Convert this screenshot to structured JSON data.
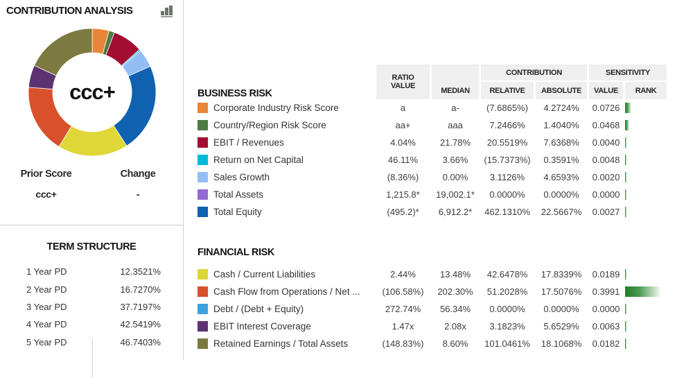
{
  "panel": {
    "title": "CONTRIBUTION ANALYSIS",
    "donut": {
      "center_label": "ccc+",
      "segments": [
        {
          "name": "Corporate Industry Risk Score",
          "color": "#E8873B",
          "value": 4.2724
        },
        {
          "name": "Country/Region Risk Score",
          "color": "#4F7B42",
          "value": 1.404
        },
        {
          "name": "EBIT / Revenues",
          "color": "#A30D32",
          "value": 7.6368
        },
        {
          "name": "Return on Net Capital",
          "color": "#00B9D8",
          "value": 0.3591
        },
        {
          "name": "Sales Growth",
          "color": "#92BEF5",
          "value": 4.6593
        },
        {
          "name": "Total Assets",
          "color": "#9569D3",
          "value": 0.0
        },
        {
          "name": "Total Equity",
          "color": "#1061B0",
          "value": 22.5667
        },
        {
          "name": "Cash / Current Liabilities",
          "color": "#DFD637",
          "value": 17.8339
        },
        {
          "name": "Cash Flow from Operations / Net ...",
          "color": "#D8512B",
          "value": 17.5076
        },
        {
          "name": "Debt / (Debt + Equity)",
          "color": "#3FA0E1",
          "value": 0.0
        },
        {
          "name": "EBIT Interest Coverage",
          "color": "#5D3272",
          "value": 5.6529
        },
        {
          "name": "Retained Earnings / Total Assets",
          "color": "#7C7A40",
          "value": 18.1068
        }
      ]
    },
    "prior_score": {
      "label": "Prior Score",
      "value": "ccc+"
    },
    "change": {
      "label": "Change",
      "value": "-"
    },
    "term_structure": {
      "title": "TERM STRUCTURE",
      "rows": [
        {
          "label": "1 Year PD",
          "value": "12.3521%"
        },
        {
          "label": "2 Year PD",
          "value": "16.7270%"
        },
        {
          "label": "3 Year PD",
          "value": "37.7197%"
        },
        {
          "label": "4 Year PD",
          "value": "42.5419%"
        },
        {
          "label": "5 Year PD",
          "value": "46.7403%"
        }
      ]
    }
  },
  "table": {
    "headers": {
      "ratio_value": [
        "RATIO",
        "VALUE"
      ],
      "median": "MEDIAN",
      "contribution": "CONTRIBUTION",
      "relative": "RELATIVE",
      "absolute": "ABSOLUTE",
      "sensitivity": "SENSITIVITY",
      "value": "VALUE",
      "rank": "RANK"
    },
    "business_risk": {
      "title": "BUSINESS RISK",
      "rows": [
        {
          "label": "Corporate Industry Risk Score",
          "color": "#E8873B",
          "ratio_value": "a",
          "median": "a-",
          "relative": "(7.6865%)",
          "absolute": "4.2724%",
          "sens_value": "0.0726"
        },
        {
          "label": "Country/Region Risk Score",
          "color": "#4F7B42",
          "ratio_value": "aa+",
          "median": "aaa",
          "relative": "7.2466%",
          "absolute": "1.4040%",
          "sens_value": "0.0468"
        },
        {
          "label": "EBIT / Revenues",
          "color": "#A30D32",
          "ratio_value": "4.04%",
          "median": "21.78%",
          "relative": "20.5519%",
          "absolute": "7.6368%",
          "sens_value": "0.0040"
        },
        {
          "label": "Return on Net Capital",
          "color": "#00B9D8",
          "ratio_value": "46.11%",
          "median": "3.66%",
          "relative": "(15.7373%)",
          "absolute": "0.3591%",
          "sens_value": "0.0048"
        },
        {
          "label": "Sales Growth",
          "color": "#92BEF5",
          "ratio_value": "(8.36%)",
          "median": "0.00%",
          "relative": "3.1126%",
          "absolute": "4.6593%",
          "sens_value": "0.0020"
        },
        {
          "label": "Total Assets",
          "color": "#9569D3",
          "ratio_value": "1,215.8*",
          "median": "19,002.1*",
          "relative": "0.0000%",
          "absolute": "0.0000%",
          "sens_value": "0.0000"
        },
        {
          "label": "Total Equity",
          "color": "#1061B0",
          "ratio_value": "(495.2)*",
          "median": "6,912.2*",
          "relative": "462.1310%",
          "absolute": "22.5667%",
          "sens_value": "0.0027"
        }
      ]
    },
    "financial_risk": {
      "title": "FINANCIAL RISK",
      "rows": [
        {
          "label": "Cash / Current Liabilities",
          "color": "#DFD637",
          "ratio_value": "2.44%",
          "median": "13.48%",
          "relative": "42.6478%",
          "absolute": "17.8339%",
          "sens_value": "0.0189"
        },
        {
          "label": "Cash Flow from Operations / Net ...",
          "color": "#D8512B",
          "ratio_value": "(106.58%)",
          "median": "202.30%",
          "relative": "51.2028%",
          "absolute": "17.5076%",
          "sens_value": "0.3991"
        },
        {
          "label": "Debt / (Debt + Equity)",
          "color": "#3FA0E1",
          "ratio_value": "272.74%",
          "median": "56.34%",
          "relative": "0.0000%",
          "absolute": "0.0000%",
          "sens_value": "0.0000"
        },
        {
          "label": "EBIT Interest Coverage",
          "color": "#5D3272",
          "ratio_value": "1.47x",
          "median": "2.08x",
          "relative": "3.1823%",
          "absolute": "5.6529%",
          "sens_value": "0.0063"
        },
        {
          "label": "Retained Earnings / Total Assets",
          "color": "#7C7A40",
          "ratio_value": "(148.83%)",
          "median": "8.60%",
          "relative": "101.0461%",
          "absolute": "18.1068%",
          "sens_value": "0.0182"
        }
      ]
    }
  }
}
